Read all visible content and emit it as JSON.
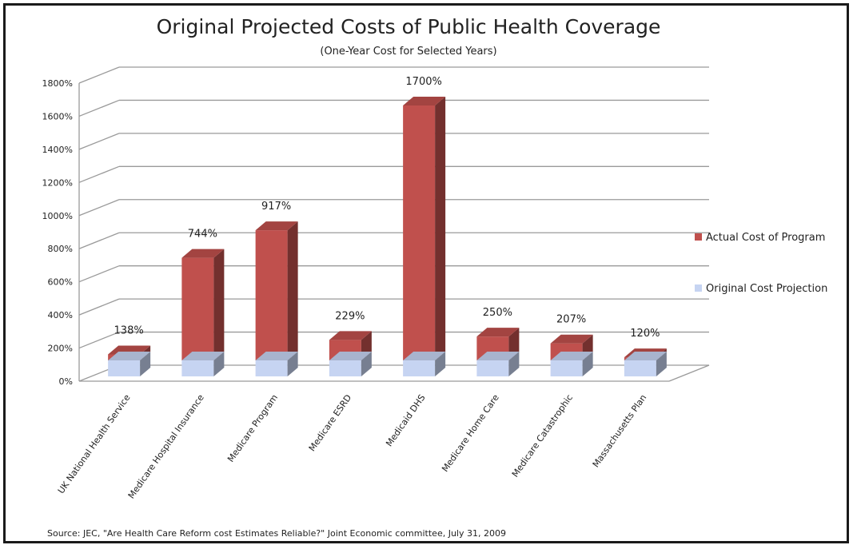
{
  "chart_data": {
    "type": "bar",
    "title": "Original Projected Costs of Public Health Coverage",
    "subtitle": "(One-Year Cost for Selected Years)",
    "source": "Source: JEC, \"Are Health Care Reform cost Estimates Reliable?\" Joint Economic committee, July 31, 2009",
    "categories": [
      "UK National Health Service",
      "Medicare Hospital Insurance",
      "Medicare Program",
      "Medicare ESRD",
      "Medicaid DHS",
      "Medicare Home Care",
      "Medicare Catastrophic",
      "Massachusetts Plan"
    ],
    "series": [
      {
        "name": "Actual Cost of Program",
        "values": [
          138,
          744,
          917,
          229,
          1700,
          250,
          207,
          120
        ],
        "labels": [
          "138%",
          "744%",
          "917%",
          "229%",
          "1700%",
          "250%",
          "207%",
          "120%"
        ],
        "color": "#c0504d"
      },
      {
        "name": "Original Cost Projection",
        "values": [
          100,
          100,
          100,
          100,
          100,
          100,
          100,
          100
        ],
        "color": "#c6d4f2"
      }
    ],
    "yticks": [
      "0%",
      "200%",
      "400%",
      "600%",
      "800%",
      "1000%",
      "1200%",
      "1400%",
      "1600%",
      "1800%"
    ],
    "ylim": [
      0,
      1800
    ],
    "grid": true,
    "legend_position": "right",
    "style": "3d-column"
  }
}
